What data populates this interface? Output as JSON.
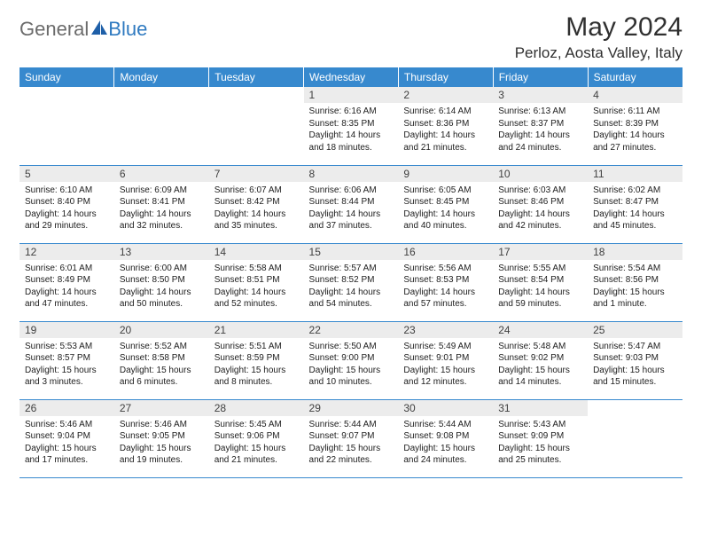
{
  "logo": {
    "text1": "General",
    "text2": "Blue"
  },
  "title": "May 2024",
  "location": "Perloz, Aosta Valley, Italy",
  "colors": {
    "header_bg": "#3789ce",
    "header_text": "#ffffff",
    "daynum_bg": "#ececec",
    "border": "#3789ce",
    "logo_gray": "#6b6b6b",
    "logo_blue": "#2f7ac0"
  },
  "weekdays": [
    "Sunday",
    "Monday",
    "Tuesday",
    "Wednesday",
    "Thursday",
    "Friday",
    "Saturday"
  ],
  "weeks": [
    [
      {
        "n": "",
        "sr": "",
        "ss": "",
        "dl": ""
      },
      {
        "n": "",
        "sr": "",
        "ss": "",
        "dl": ""
      },
      {
        "n": "",
        "sr": "",
        "ss": "",
        "dl": ""
      },
      {
        "n": "1",
        "sr": "Sunrise: 6:16 AM",
        "ss": "Sunset: 8:35 PM",
        "dl": "Daylight: 14 hours and 18 minutes."
      },
      {
        "n": "2",
        "sr": "Sunrise: 6:14 AM",
        "ss": "Sunset: 8:36 PM",
        "dl": "Daylight: 14 hours and 21 minutes."
      },
      {
        "n": "3",
        "sr": "Sunrise: 6:13 AM",
        "ss": "Sunset: 8:37 PM",
        "dl": "Daylight: 14 hours and 24 minutes."
      },
      {
        "n": "4",
        "sr": "Sunrise: 6:11 AM",
        "ss": "Sunset: 8:39 PM",
        "dl": "Daylight: 14 hours and 27 minutes."
      }
    ],
    [
      {
        "n": "5",
        "sr": "Sunrise: 6:10 AM",
        "ss": "Sunset: 8:40 PM",
        "dl": "Daylight: 14 hours and 29 minutes."
      },
      {
        "n": "6",
        "sr": "Sunrise: 6:09 AM",
        "ss": "Sunset: 8:41 PM",
        "dl": "Daylight: 14 hours and 32 minutes."
      },
      {
        "n": "7",
        "sr": "Sunrise: 6:07 AM",
        "ss": "Sunset: 8:42 PM",
        "dl": "Daylight: 14 hours and 35 minutes."
      },
      {
        "n": "8",
        "sr": "Sunrise: 6:06 AM",
        "ss": "Sunset: 8:44 PM",
        "dl": "Daylight: 14 hours and 37 minutes."
      },
      {
        "n": "9",
        "sr": "Sunrise: 6:05 AM",
        "ss": "Sunset: 8:45 PM",
        "dl": "Daylight: 14 hours and 40 minutes."
      },
      {
        "n": "10",
        "sr": "Sunrise: 6:03 AM",
        "ss": "Sunset: 8:46 PM",
        "dl": "Daylight: 14 hours and 42 minutes."
      },
      {
        "n": "11",
        "sr": "Sunrise: 6:02 AM",
        "ss": "Sunset: 8:47 PM",
        "dl": "Daylight: 14 hours and 45 minutes."
      }
    ],
    [
      {
        "n": "12",
        "sr": "Sunrise: 6:01 AM",
        "ss": "Sunset: 8:49 PM",
        "dl": "Daylight: 14 hours and 47 minutes."
      },
      {
        "n": "13",
        "sr": "Sunrise: 6:00 AM",
        "ss": "Sunset: 8:50 PM",
        "dl": "Daylight: 14 hours and 50 minutes."
      },
      {
        "n": "14",
        "sr": "Sunrise: 5:58 AM",
        "ss": "Sunset: 8:51 PM",
        "dl": "Daylight: 14 hours and 52 minutes."
      },
      {
        "n": "15",
        "sr": "Sunrise: 5:57 AM",
        "ss": "Sunset: 8:52 PM",
        "dl": "Daylight: 14 hours and 54 minutes."
      },
      {
        "n": "16",
        "sr": "Sunrise: 5:56 AM",
        "ss": "Sunset: 8:53 PM",
        "dl": "Daylight: 14 hours and 57 minutes."
      },
      {
        "n": "17",
        "sr": "Sunrise: 5:55 AM",
        "ss": "Sunset: 8:54 PM",
        "dl": "Daylight: 14 hours and 59 minutes."
      },
      {
        "n": "18",
        "sr": "Sunrise: 5:54 AM",
        "ss": "Sunset: 8:56 PM",
        "dl": "Daylight: 15 hours and 1 minute."
      }
    ],
    [
      {
        "n": "19",
        "sr": "Sunrise: 5:53 AM",
        "ss": "Sunset: 8:57 PM",
        "dl": "Daylight: 15 hours and 3 minutes."
      },
      {
        "n": "20",
        "sr": "Sunrise: 5:52 AM",
        "ss": "Sunset: 8:58 PM",
        "dl": "Daylight: 15 hours and 6 minutes."
      },
      {
        "n": "21",
        "sr": "Sunrise: 5:51 AM",
        "ss": "Sunset: 8:59 PM",
        "dl": "Daylight: 15 hours and 8 minutes."
      },
      {
        "n": "22",
        "sr": "Sunrise: 5:50 AM",
        "ss": "Sunset: 9:00 PM",
        "dl": "Daylight: 15 hours and 10 minutes."
      },
      {
        "n": "23",
        "sr": "Sunrise: 5:49 AM",
        "ss": "Sunset: 9:01 PM",
        "dl": "Daylight: 15 hours and 12 minutes."
      },
      {
        "n": "24",
        "sr": "Sunrise: 5:48 AM",
        "ss": "Sunset: 9:02 PM",
        "dl": "Daylight: 15 hours and 14 minutes."
      },
      {
        "n": "25",
        "sr": "Sunrise: 5:47 AM",
        "ss": "Sunset: 9:03 PM",
        "dl": "Daylight: 15 hours and 15 minutes."
      }
    ],
    [
      {
        "n": "26",
        "sr": "Sunrise: 5:46 AM",
        "ss": "Sunset: 9:04 PM",
        "dl": "Daylight: 15 hours and 17 minutes."
      },
      {
        "n": "27",
        "sr": "Sunrise: 5:46 AM",
        "ss": "Sunset: 9:05 PM",
        "dl": "Daylight: 15 hours and 19 minutes."
      },
      {
        "n": "28",
        "sr": "Sunrise: 5:45 AM",
        "ss": "Sunset: 9:06 PM",
        "dl": "Daylight: 15 hours and 21 minutes."
      },
      {
        "n": "29",
        "sr": "Sunrise: 5:44 AM",
        "ss": "Sunset: 9:07 PM",
        "dl": "Daylight: 15 hours and 22 minutes."
      },
      {
        "n": "30",
        "sr": "Sunrise: 5:44 AM",
        "ss": "Sunset: 9:08 PM",
        "dl": "Daylight: 15 hours and 24 minutes."
      },
      {
        "n": "31",
        "sr": "Sunrise: 5:43 AM",
        "ss": "Sunset: 9:09 PM",
        "dl": "Daylight: 15 hours and 25 minutes."
      },
      {
        "n": "",
        "sr": "",
        "ss": "",
        "dl": ""
      }
    ]
  ]
}
